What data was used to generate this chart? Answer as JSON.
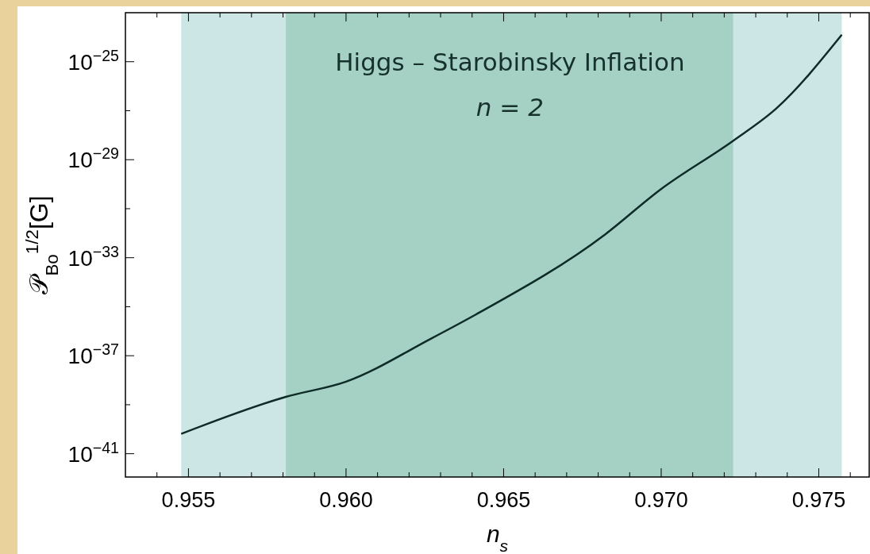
{
  "chart_data": {
    "type": "line",
    "xlabel": "n$_{s}$",
    "ylabel": "𝒫$_{Bo}$$^{1/2}$[G]",
    "annotations": [
      "Higgs – Starobinsky Inflation",
      "n = 2"
    ],
    "log": "y",
    "xlim": [
      0.953,
      0.9766
    ],
    "ylim": [
      1.12e-42,
      1e-23
    ],
    "xticks": [
      {
        "value": 0.954,
        "label": null
      },
      0.955,
      {
        "value": 0.956,
        "label": null
      },
      {
        "value": 0.957,
        "label": null
      },
      {
        "value": 0.958,
        "label": null
      },
      {
        "value": 0.959,
        "label": null
      },
      {
        "value": 0.96,
        "label": "0.960"
      },
      {
        "value": 0.961,
        "label": null
      },
      {
        "value": 0.962,
        "label": null
      },
      {
        "value": 0.963,
        "label": null
      },
      {
        "value": 0.964,
        "label": null
      },
      0.965,
      {
        "value": 0.966,
        "label": null
      },
      {
        "value": 0.967,
        "label": null
      },
      {
        "value": 0.968,
        "label": null
      },
      {
        "value": 0.969,
        "label": null
      },
      {
        "value": 0.97,
        "label": "0.970"
      },
      {
        "value": 0.971,
        "label": null
      },
      {
        "value": 0.972,
        "label": null
      },
      {
        "value": 0.973,
        "label": null
      },
      {
        "value": 0.974,
        "label": null
      },
      0.975,
      {
        "value": 0.976,
        "label": null
      }
    ],
    "yticks": [
      {
        "value": 1e-41,
        "label": "10$^{−41}$"
      },
      {
        "value": 1e-39,
        "label": null
      },
      {
        "value": 1e-37,
        "label": "10$^{−37}$"
      },
      {
        "value": 1e-35,
        "label": null
      },
      {
        "value": 1e-33,
        "label": "10$^{−33}$"
      },
      {
        "value": 1e-31,
        "label": null
      },
      {
        "value": 1e-29,
        "label": "10$^{−29}$"
      },
      {
        "value": 1e-27,
        "label": null
      },
      {
        "value": 1e-25,
        "label": "10$^{−25}$"
      }
    ],
    "bands": [
      {
        "axis": "x",
        "from": 0.95477,
        "to": 0.97573,
        "color": "#cce5e5"
      },
      {
        "axis": "x",
        "from": 0.95809,
        "to": 0.97228,
        "color": "#a5d0c4"
      }
    ],
    "grid": false,
    "series": [
      {
        "color": "#0d2b27",
        "x": [
          0.95477,
          0.95809,
          0.96,
          0.9627,
          0.96412,
          0.96821,
          0.96997,
          0.97228,
          0.97366,
          0.97573
        ],
        "values": [
          6.5e-41,
          2.1e-39,
          8.7e-39,
          5e-37,
          4.8e-36,
          8.7e-33,
          6e-31,
          5.9e-29,
          1.26e-27,
          1.26e-24
        ]
      }
    ]
  }
}
